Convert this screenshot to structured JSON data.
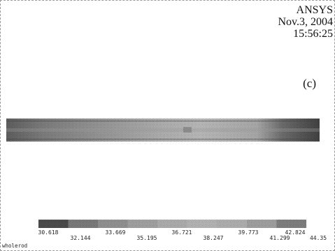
{
  "header": {
    "software": "ANSYS",
    "date": "Nov.3, 2004",
    "time": "15:56:25"
  },
  "panel_label": "(c)",
  "contour": {
    "color_low": "#5a5a5a",
    "color_high": "#3a3a3a",
    "bands_gray": [
      "#555555",
      "#8a8a8a",
      "#a3a3a3",
      "#b5b5b5",
      "#c2c2c2",
      "#cbcbcb",
      "#c4c4c4",
      "#b3b3b3",
      "#8f8f8f"
    ]
  },
  "legend": {
    "ticks_top": [
      "30.618",
      "33.669",
      "36.721",
      "39.773",
      "42.824"
    ],
    "ticks_bottom": [
      "32.144",
      "35.195",
      "38.247",
      "41.299",
      "44.35"
    ]
  },
  "model_name": "wholerod"
}
